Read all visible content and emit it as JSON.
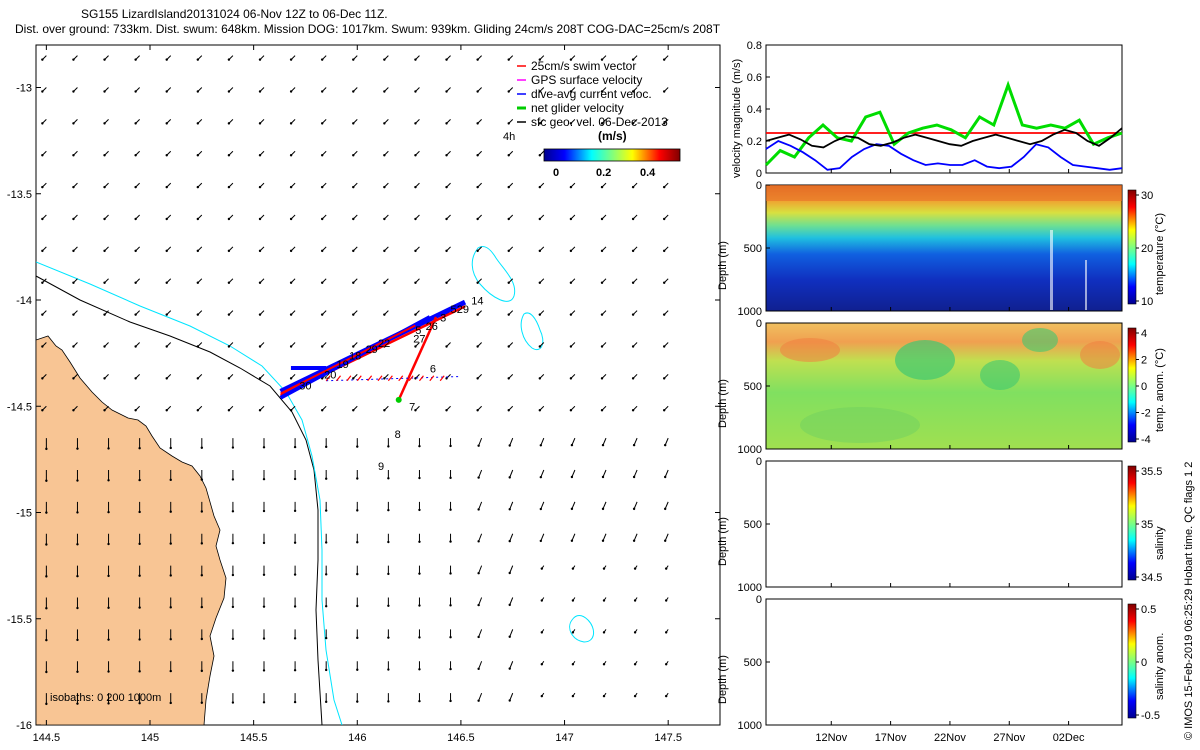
{
  "header": {
    "line1": "SG155 LizardIsland20131024 06-Nov 12Z to 06-Dec 11Z.",
    "line2": "Dist. over ground: 733km. Dist. swum: 648km. Mission DOG: 1017km. Swum: 939km. Gliding 24cm/s 208T COG-DAC=25cm/s 208T"
  },
  "credit": "© IMOS 15-Feb-2019 06:25:29 Hobart time. QC flags 1  2",
  "colors": {
    "land": "#f8c594",
    "isobath200": "#00e5ff",
    "isobath1000": "#000000",
    "swim": "#ff0000",
    "gps": "#ff00ff",
    "dac": "#0000ff",
    "net": "#00cc00"
  },
  "chart_data": [
    {
      "type": "scatter",
      "name": "map",
      "xticks": [
        "144.5",
        "145",
        "145.5",
        "146",
        "146.5",
        "147",
        "147.5"
      ],
      "yticks": [
        "-13",
        "-13.5",
        "-14",
        "-14.5",
        "-15",
        "-15.5",
        "-16"
      ],
      "xlim": [
        144.45,
        147.75
      ],
      "ylim": [
        -16,
        -12.8
      ],
      "legend": {
        "position": "top-right",
        "entries": [
          "25cm/s swim vector",
          "GPS surface velocity",
          "dive-avg current veloc.",
          "net glider velocity",
          "sfc geo. vel. 06-Dec-2013"
        ]
      },
      "colorbar": {
        "label": "(m/s)",
        "ticks": [
          "0",
          "0.2",
          "0.4"
        ],
        "extra_label": "4h"
      },
      "isobaths_label": "isobaths: 0   200  1000m",
      "track_labels": [
        {
          "t": "14",
          "x": 146.55,
          "y": -14.02
        },
        {
          "t": "29",
          "x": 146.48,
          "y": -14.06
        },
        {
          "t": "5",
          "x": 146.45,
          "y": -14.06
        },
        {
          "t": "3",
          "x": 146.4,
          "y": -14.1
        },
        {
          "t": "26",
          "x": 146.33,
          "y": -14.14
        },
        {
          "t": "5",
          "x": 146.28,
          "y": -14.16
        },
        {
          "t": "27",
          "x": 146.27,
          "y": -14.2
        },
        {
          "t": "22",
          "x": 146.1,
          "y": -14.22
        },
        {
          "t": "29",
          "x": 146.04,
          "y": -14.25
        },
        {
          "t": "18",
          "x": 145.96,
          "y": -14.28
        },
        {
          "t": "19",
          "x": 145.9,
          "y": -14.32
        },
        {
          "t": "20",
          "x": 145.84,
          "y": -14.37
        },
        {
          "t": "30",
          "x": 145.72,
          "y": -14.42
        },
        {
          "t": "6",
          "x": 146.35,
          "y": -14.34
        },
        {
          "t": "7",
          "x": 146.25,
          "y": -14.52
        },
        {
          "t": "8",
          "x": 146.18,
          "y": -14.65
        },
        {
          "t": "9",
          "x": 146.1,
          "y": -14.8
        }
      ]
    },
    {
      "type": "line",
      "name": "velocity",
      "ylabel": "velocity magnitude (m/s)",
      "ylim": [
        0,
        0.8
      ],
      "yticks": [
        "0",
        "0.2",
        "0.4",
        "0.6",
        "0.8"
      ],
      "x_start_day": 6.5,
      "x_end_day": 36.5,
      "series": [
        {
          "color": "red",
          "values": [
            0.25,
            0.25,
            0.25,
            0.25,
            0.25,
            0.25,
            0.25,
            0.25,
            0.25,
            0.25,
            0.25,
            0.25,
            0.25,
            0.25,
            0.25,
            0.25
          ]
        },
        {
          "color": "green",
          "values": [
            0.05,
            0.14,
            0.1,
            0.22,
            0.3,
            0.22,
            0.2,
            0.35,
            0.38,
            0.18,
            0.25,
            0.28,
            0.3,
            0.27,
            0.22,
            0.35,
            0.3,
            0.55,
            0.3,
            0.28,
            0.3,
            0.28,
            0.33,
            0.18,
            0.22,
            0.25
          ]
        },
        {
          "color": "blue",
          "values": [
            0.15,
            0.2,
            0.17,
            0.13,
            0.08,
            0.02,
            0.03,
            0.1,
            0.15,
            0.18,
            0.17,
            0.12,
            0.08,
            0.05,
            0.06,
            0.05,
            0.05,
            0.08,
            0.04,
            0.03,
            0.04,
            0.1,
            0.18,
            0.16,
            0.1,
            0.05,
            0.04,
            0.03,
            0.02,
            0.03
          ]
        },
        {
          "color": "black",
          "values": [
            0.2,
            0.22,
            0.24,
            0.21,
            0.17,
            0.16,
            0.2,
            0.23,
            0.22,
            0.18,
            0.17,
            0.19,
            0.22,
            0.24,
            0.22,
            0.2,
            0.18,
            0.17,
            0.2,
            0.22,
            0.24,
            0.22,
            0.2,
            0.18,
            0.2,
            0.24,
            0.27,
            0.25,
            0.2,
            0.17,
            0.22,
            0.28
          ]
        }
      ]
    },
    {
      "type": "heatmap",
      "name": "temperature",
      "ylabel": "Depth (m)",
      "colorbar_label": "temperature (°C)",
      "cticks": [
        "30",
        "20",
        "10"
      ],
      "yticks": [
        "0",
        "500",
        "1000"
      ]
    },
    {
      "type": "heatmap",
      "name": "temp-anomaly",
      "ylabel": "Depth (m)",
      "colorbar_label": "temp. anom. (°C)",
      "cticks": [
        "4",
        "2",
        "0",
        "-2",
        "-4"
      ],
      "yticks": [
        "0",
        "500",
        "1000"
      ]
    },
    {
      "type": "heatmap",
      "name": "salinity",
      "ylabel": "Depth (m)",
      "colorbar_label": "salinity",
      "cticks": [
        "35.5",
        "35",
        "34.5"
      ],
      "yticks": [
        "0",
        "500",
        "1000"
      ]
    },
    {
      "type": "heatmap",
      "name": "salinity-anomaly",
      "ylabel": "Depth (m)",
      "colorbar_label": "salinity anom.",
      "cticks": [
        "0.5",
        "0",
        "-0.5"
      ],
      "yticks": [
        "0",
        "500",
        "1000"
      ]
    }
  ],
  "time_axis": {
    "ticks": [
      "12Nov",
      "17Nov",
      "22Nov",
      "27Nov",
      "02Dec"
    ]
  }
}
